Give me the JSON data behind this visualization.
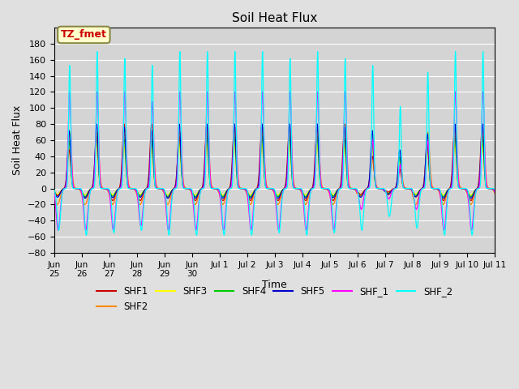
{
  "title": "Soil Heat Flux",
  "ylabel": "Soil Heat Flux",
  "xlabel": "Time",
  "ylim": [
    -80,
    200
  ],
  "yticks": [
    -80,
    -60,
    -40,
    -20,
    0,
    20,
    40,
    60,
    80,
    100,
    120,
    140,
    160,
    180
  ],
  "background_color": "#e0e0e0",
  "plot_bg_color": "#d4d4d4",
  "series_colors": {
    "SHF1": "#cc0000",
    "SHF2": "#ff8800",
    "SHF3": "#ffff00",
    "SHF4": "#00cc00",
    "SHF5": "#0000cc",
    "SHF_1": "#ff00ff",
    "SHF_2": "#00ffff"
  },
  "annotation_text": "TZ_fmet",
  "annotation_color": "#cc0000",
  "annotation_bg": "#ffffcc",
  "annotation_border": "#888844",
  "num_days": 16,
  "dt": 0.25
}
